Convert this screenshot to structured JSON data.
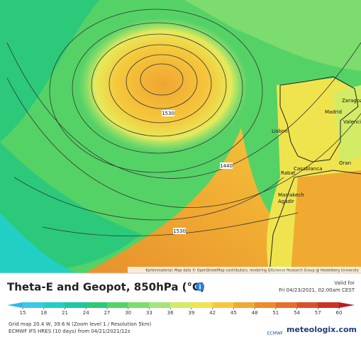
{
  "header": {
    "title": "Theta-E and Geopot, 850hPa (°C)",
    "valid_label": "Valid for",
    "valid_time": "Fri 04/23/2021, 02:00am CEST"
  },
  "legend": {
    "ticks": [
      15,
      18,
      21,
      24,
      27,
      30,
      33,
      36,
      39,
      42,
      45,
      48,
      51,
      54,
      57,
      60
    ],
    "colors": [
      "#2fb8e8",
      "#3cc8e6",
      "#22cfc4",
      "#1ec8a0",
      "#2cc97a",
      "#55d266",
      "#7ddc6e",
      "#a4e47a",
      "#d2ec66",
      "#f0e44e",
      "#f5c83c",
      "#f0aa32",
      "#eb8c28",
      "#e66e28",
      "#dc5028",
      "#cc3228",
      "#b41e28"
    ]
  },
  "info": {
    "line1": "Grid map 20.4 W, 39.6 N (Zoom level 1 / Resolution 5km)",
    "line2": "ECMWF IFS HRES (10 days) from 04/21/2021/12z"
  },
  "map": {
    "contours": [
      "1530",
      "1440",
      "1530"
    ],
    "cities": [
      "Madrid",
      "Lisbon",
      "Rabat",
      "Casablanca",
      "Marrakech",
      "Agadir",
      "Zaragoza",
      "Valencia",
      "Oran"
    ],
    "attribution": "Kartenmaterial: Map data © OpenStreetMap contributors, rendering GIScience Research Group @ Heidelberg University"
  },
  "logos": {
    "ecmwf": "ECMWF",
    "site": "meteologix.com"
  }
}
